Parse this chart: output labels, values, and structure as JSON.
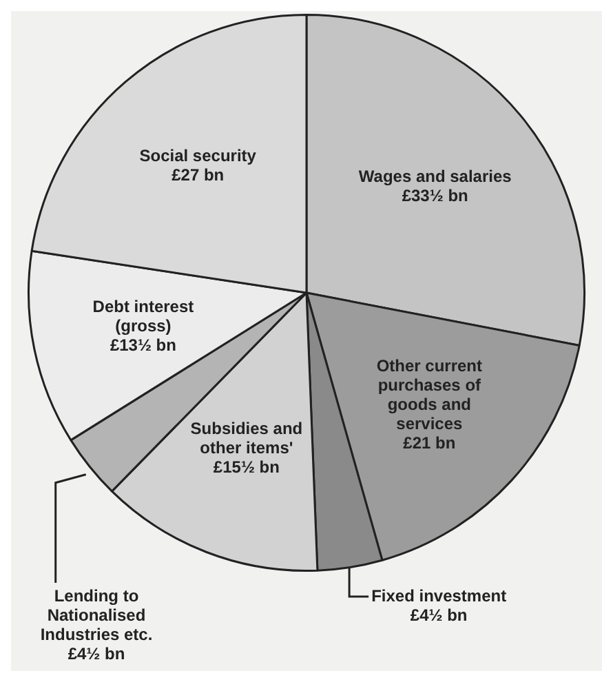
{
  "chart_data": {
    "type": "pie",
    "categories": [
      "Wages and salaries",
      "Other current purchases of goods and services",
      "Fixed investment",
      "Subsidies and other items'",
      "Lending to Nationalised Industries etc.",
      "Debt interest (gross)",
      "Social security"
    ],
    "values": [
      33.5,
      21,
      4.5,
      15.5,
      4.5,
      13.5,
      27
    ],
    "value_labels": [
      "£33½ bn",
      "£21 bn",
      "£4½ bn",
      "£15½ bn",
      "£4½ bn",
      "£13½ bn",
      "£27 bn"
    ],
    "colors": [
      "#c4c4c4",
      "#9c9c9c",
      "#8a8a8a",
      "#d2d2d2",
      "#b4b4b4",
      "#ececec",
      "#dadada"
    ]
  }
}
